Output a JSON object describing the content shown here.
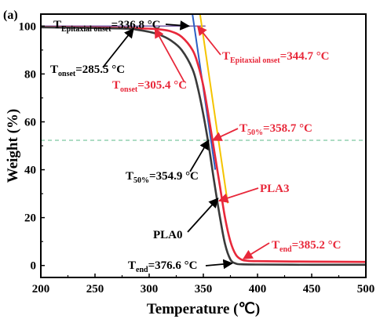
{
  "chart_data": {
    "type": "line",
    "panel_label": "(a)",
    "xlabel": "Temperature (℃)",
    "ylabel": "Weight (%)",
    "xlim": [
      200,
      500
    ],
    "ylim": [
      -5,
      105
    ],
    "x_ticks": [
      200,
      250,
      300,
      350,
      400,
      450,
      500
    ],
    "y_ticks": [
      0,
      20,
      40,
      60,
      80,
      100
    ],
    "colors": {
      "PLA0": "#3a3a3a",
      "PLA3": "#e8283a",
      "tangent_PLA0": "#2b5fc4",
      "tangent_PLA3": "#f5c400",
      "baseline": "#7b5fa8",
      "midline": "#7cc8a0",
      "annotation_red": "#e8283a",
      "annotation_black": "#000000"
    },
    "series": [
      {
        "name": "PLA0",
        "x": [
          200,
          250,
          280,
          290,
          300,
          310,
          320,
          330,
          340,
          345,
          350,
          355,
          360,
          365,
          370,
          375,
          380,
          385,
          400,
          450,
          500
        ],
        "y": [
          99.5,
          99.2,
          98.9,
          98.4,
          97.6,
          96.3,
          94.0,
          90.0,
          82.0,
          74.0,
          63.0,
          50.0,
          35.0,
          21.0,
          9.0,
          2.5,
          0.8,
          0.5,
          0.4,
          0.3,
          0.3
        ]
      },
      {
        "name": "PLA3",
        "x": [
          200,
          250,
          280,
          300,
          310,
          320,
          330,
          340,
          345,
          350,
          355,
          360,
          365,
          370,
          375,
          380,
          385,
          390,
          400,
          450,
          500
        ],
        "y": [
          99.6,
          99.4,
          99.2,
          98.9,
          98.6,
          97.8,
          95.5,
          90.0,
          84.0,
          75.0,
          62.0,
          48.0,
          34.0,
          20.0,
          10.0,
          4.5,
          2.5,
          2.0,
          1.8,
          1.6,
          1.5
        ]
      }
    ],
    "tangents": [
      {
        "name": "PLA0 tangent",
        "x": [
          338,
          361
        ],
        "y": [
          111,
          40
        ]
      },
      {
        "name": "PLA3 tangent",
        "x": [
          345,
          372.5
        ],
        "y": [
          111,
          26
        ]
      }
    ],
    "reference_lines": [
      {
        "orientation": "horizontal",
        "y": 100,
        "x_range": [
          200,
          352
        ],
        "style": "solid"
      },
      {
        "orientation": "horizontal",
        "y": 52.3,
        "x_range": [
          200,
          500
        ],
        "style": "dashed"
      }
    ],
    "annotations": [
      {
        "id": "t_epi_pla0",
        "main": "T",
        "sub": "Epitaxial onset",
        "rest": "=336.8 °C",
        "color": "black"
      },
      {
        "id": "t_onset_pla0",
        "main": "T",
        "sub": "onset",
        "rest": "=285.5 °C",
        "color": "black"
      },
      {
        "id": "t_epi_pla3",
        "main": "T",
        "sub": "Epitaxial onset",
        "rest": "=344.7 °C",
        "color": "red"
      },
      {
        "id": "t_onset_pla3",
        "main": "T",
        "sub": "onset",
        "rest": "=305.4 °C",
        "color": "red"
      },
      {
        "id": "t50_pla3",
        "main": "T",
        "sub": "50%",
        "rest": "=358.7 °C",
        "color": "red"
      },
      {
        "id": "t50_pla0",
        "main": "T",
        "sub": "50%",
        "rest": "=354.9 °C",
        "color": "black"
      },
      {
        "id": "label_pla3",
        "main": "PLA3",
        "sub": "",
        "rest": "",
        "color": "red"
      },
      {
        "id": "label_pla0",
        "main": "PLA0",
        "sub": "",
        "rest": "",
        "color": "black"
      },
      {
        "id": "t_end_pla3",
        "main": "T",
        "sub": "end",
        "rest": "=385.2 °C",
        "color": "red"
      },
      {
        "id": "t_end_pla0",
        "main": "T",
        "sub": "end",
        "rest": "=376.6 °C",
        "color": "black"
      }
    ]
  }
}
